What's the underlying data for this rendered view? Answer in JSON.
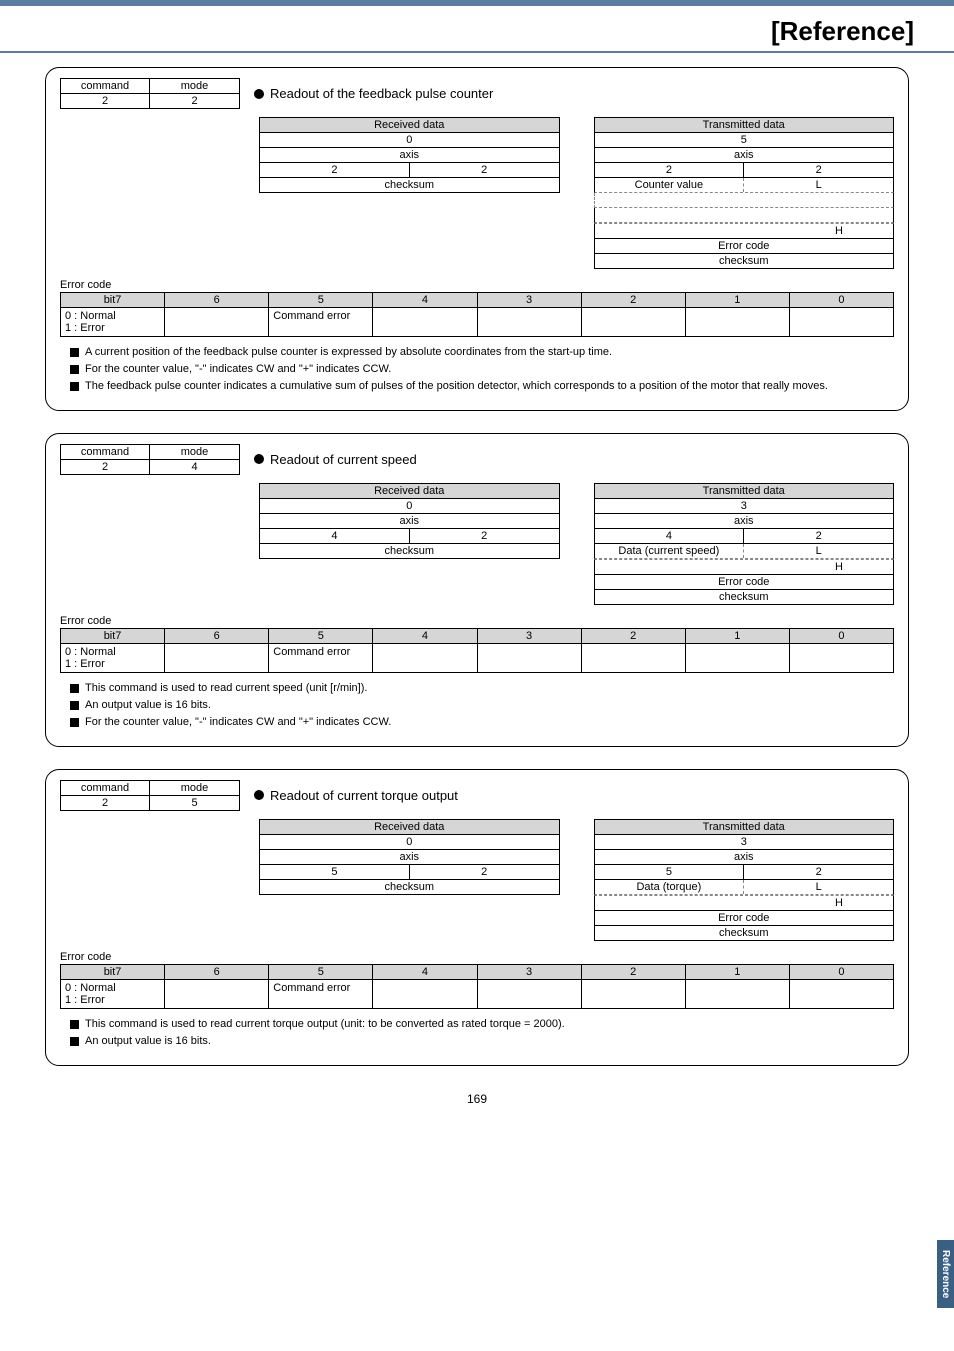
{
  "page": {
    "title": "[Reference]",
    "number": "169",
    "sideTab": "Reference"
  },
  "labels": {
    "command": "command",
    "mode": "mode",
    "received": "Received data",
    "transmitted": "Transmitted data",
    "axis": "axis",
    "checksum": "checksum",
    "errorCode": "Error code",
    "counterValue": "Counter value",
    "dataCurrentSpeed": "Data (current speed)",
    "dataTorque": "Data (torque)",
    "L": "L",
    "H": "H",
    "commandError": "Command error",
    "normalError": "0 : Normal\n1 : Error",
    "zero": "0",
    "two": "2",
    "three": "3",
    "four": "4",
    "five": "5",
    "bit7": "bit7",
    "c6": "6",
    "c5": "5",
    "c4": "4",
    "c3": "3",
    "c2": "2",
    "c1": "1",
    "c0": "0"
  },
  "card1": {
    "cmd": "2",
    "mode": "2",
    "title": "Readout of the feedback pulse counter",
    "rxMode": "2",
    "rxModeR": "2",
    "txCount": "5",
    "txMode": "2",
    "txModeR": "2",
    "notes": [
      "A current position of the feedback pulse counter is expressed by absolute coordinates from the start-up time.",
      "For the counter value, \"-\" indicates CW and \"+\" indicates CCW.",
      "The feedback pulse counter indicates a cumulative sum of pulses of the position detector, which corresponds to a position of the motor that really moves."
    ]
  },
  "card2": {
    "cmd": "2",
    "mode": "4",
    "title": "Readout of current speed",
    "rxMode": "4",
    "rxModeR": "2",
    "txCount": "3",
    "txMode": "4",
    "txModeR": "2",
    "notes": [
      "This command is used to read current speed (unit [r/min]).",
      "An output value is 16 bits.",
      "For the counter value, \"-\" indicates CW and \"+\" indicates CCW."
    ]
  },
  "card3": {
    "cmd": "2",
    "mode": "5",
    "title": "Readout of current torque output",
    "rxMode": "5",
    "rxModeR": "2",
    "txCount": "3",
    "txMode": "5",
    "txModeR": "2",
    "notes": [
      "This command is used to read current torque output (unit: to be converted as rated torque = 2000).",
      "An output value is 16 bits."
    ]
  }
}
